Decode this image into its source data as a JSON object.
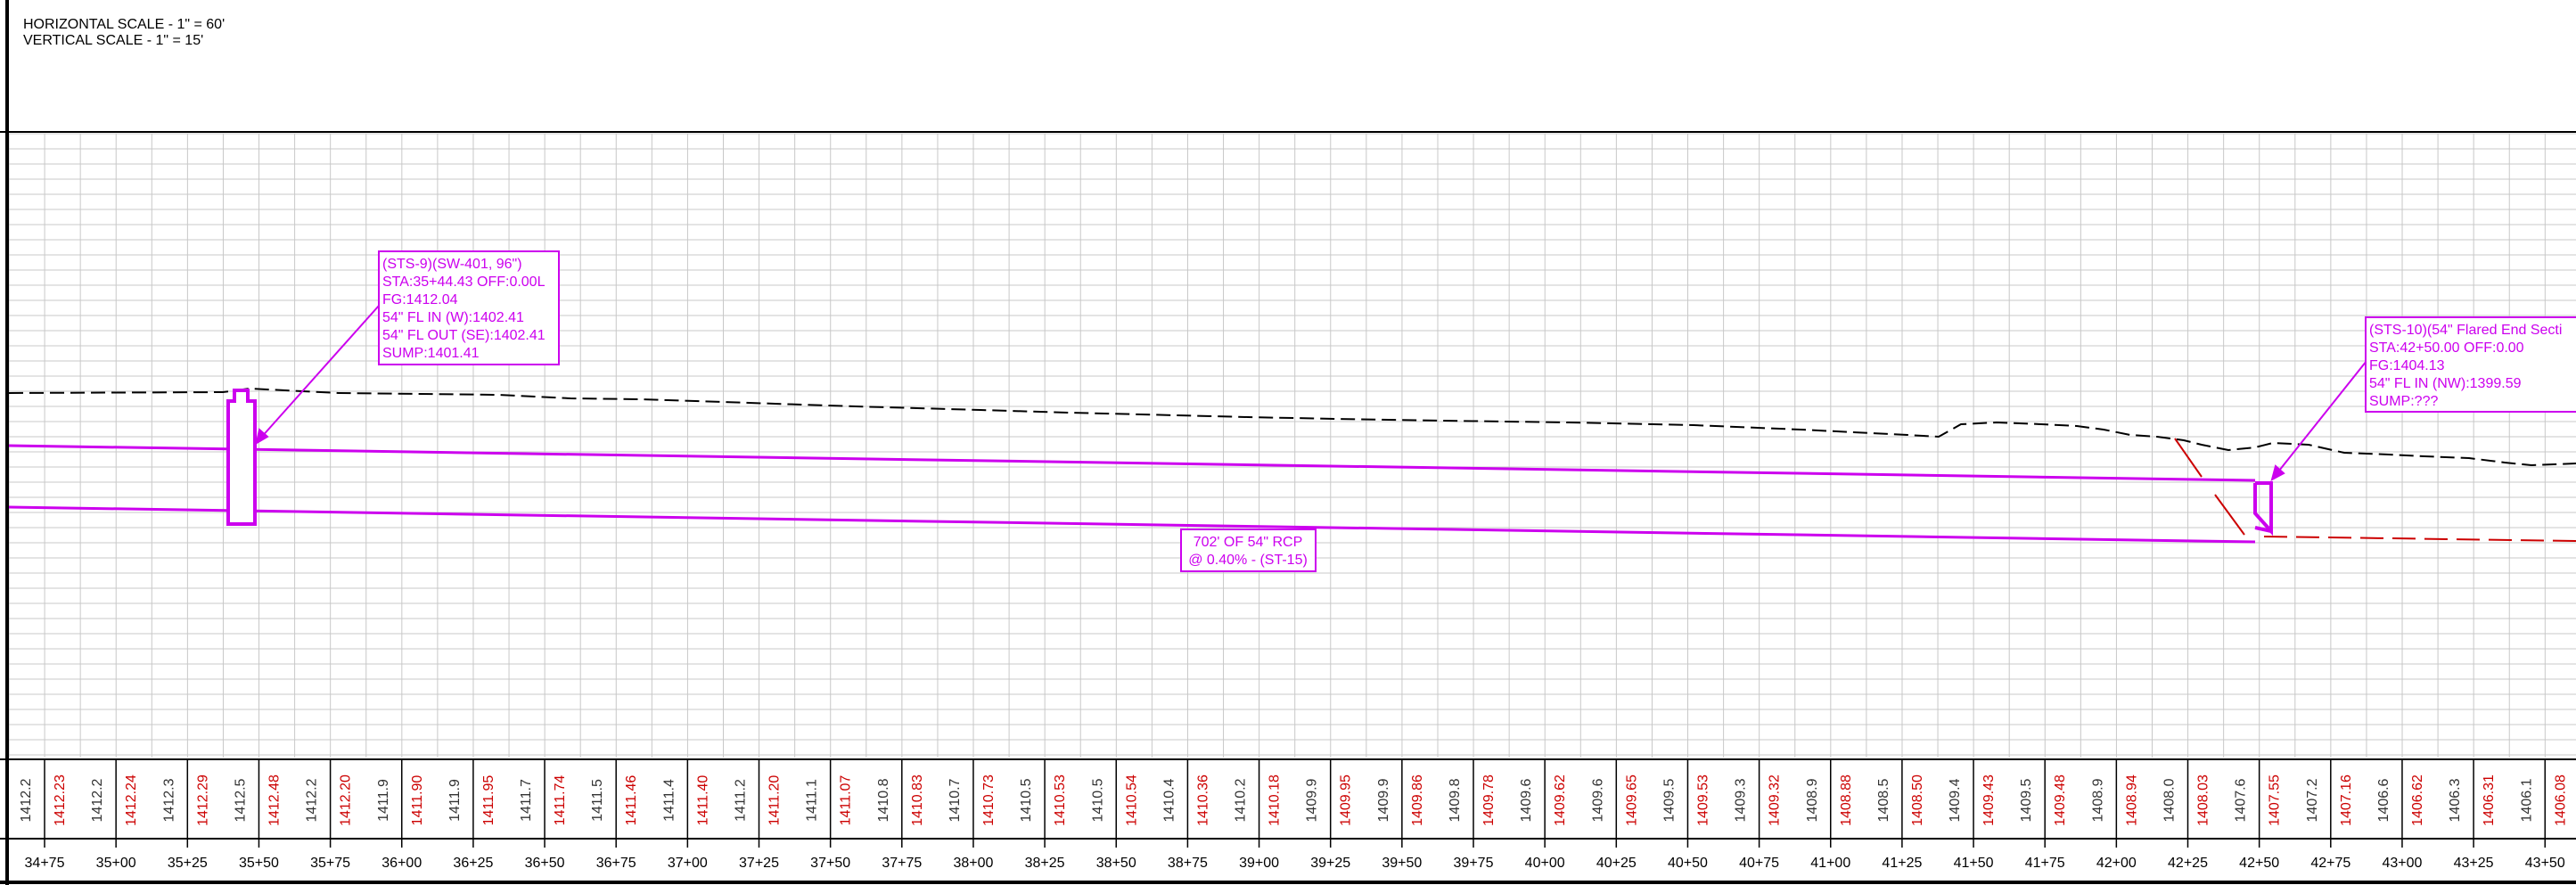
{
  "scale_note": {
    "horizontal": "HORIZONTAL SCALE - 1\" = 60'",
    "vertical": "VERTICAL SCALE - 1\" = 15'"
  },
  "stations": [
    "34+75",
    "35+00",
    "35+25",
    "35+50",
    "35+75",
    "36+00",
    "36+25",
    "36+50",
    "36+75",
    "37+00",
    "37+25",
    "37+50",
    "37+75",
    "38+00",
    "38+25",
    "38+50",
    "38+75",
    "39+00",
    "39+25",
    "39+50",
    "39+75",
    "40+00",
    "40+25",
    "40+50",
    "40+75",
    "41+00",
    "41+25",
    "41+50",
    "41+75",
    "42+00",
    "42+25",
    "42+50",
    "42+75",
    "43+00",
    "43+25",
    "43+50"
  ],
  "existing_grades": [
    "1412.2",
    "1412.2",
    "1412.3",
    "1412.5",
    "1412.2",
    "1411.9",
    "1411.9",
    "1411.7",
    "1411.5",
    "1411.4",
    "1411.2",
    "1411.1",
    "1410.8",
    "1410.7",
    "1410.5",
    "1410.5",
    "1410.4",
    "1410.2",
    "1409.9",
    "1409.9",
    "1409.8",
    "1409.6",
    "1409.6",
    "1409.5",
    "1409.3",
    "1408.9",
    "1408.5",
    "1409.4",
    "1409.5",
    "1408.9",
    "1408.0",
    "1407.6",
    "1407.2",
    "1406.6",
    "1406.3",
    "1406.1"
  ],
  "proposed_grades": [
    "1412.23",
    "1412.24",
    "1412.29",
    "1412.48",
    "1412.20",
    "1411.90",
    "1411.95",
    "1411.74",
    "1411.46",
    "1411.40",
    "1411.20",
    "1411.07",
    "1410.83",
    "1410.73",
    "1410.53",
    "1410.54",
    "1410.36",
    "1410.18",
    "1409.95",
    "1409.86",
    "1409.78",
    "1409.62",
    "1409.65",
    "1409.53",
    "1409.32",
    "1408.88",
    "1408.50",
    "1409.43",
    "1409.48",
    "1408.94",
    "1408.03",
    "1407.55",
    "1407.16",
    "1406.62",
    "1406.31",
    "1406.08"
  ],
  "labels": {
    "sts9": [
      "(STS-9)(SW-401, 96\")",
      "STA:35+44.43 OFF:0.00L",
      "FG:1412.04",
      "54\" FL IN (W):1402.41",
      "54\" FL OUT (SE):1402.41",
      "SUMP:1401.41"
    ],
    "sts10": [
      "(STS-10)(54\" Flared End Secti",
      "STA:42+50.00 OFF:0.00",
      "FG:1404.13",
      "54\" FL IN (NW):1399.59",
      "SUMP:???"
    ],
    "pipe": [
      "702' OF 54\" RCP",
      "@ 0.40% - (ST-15)"
    ]
  },
  "colors": {
    "pipe": "#cc00ee",
    "proposed": "#cc0000",
    "grid": "#c8c8c8",
    "line": "#000000"
  }
}
